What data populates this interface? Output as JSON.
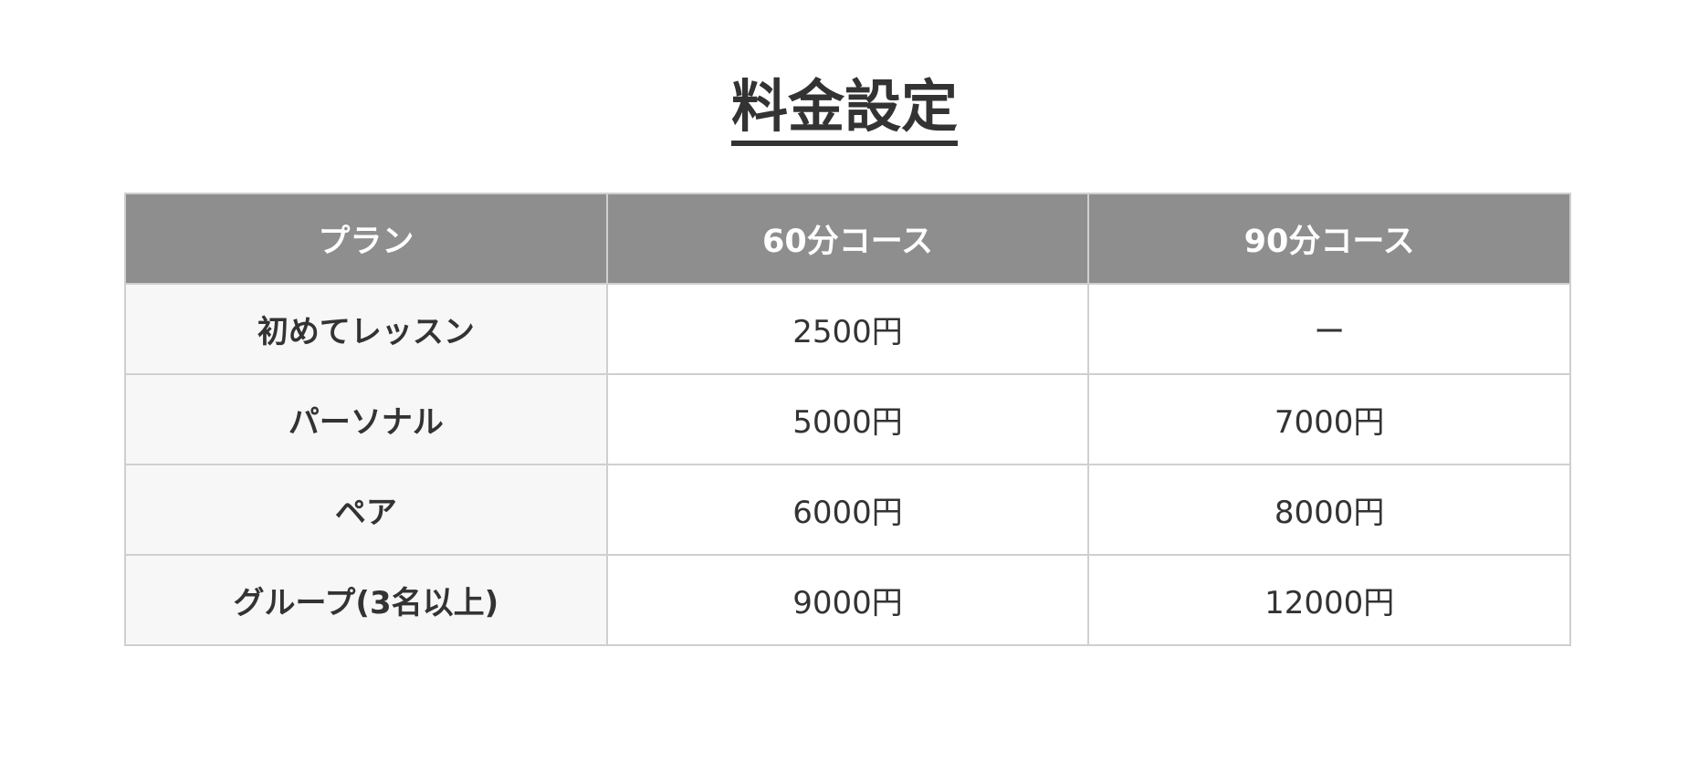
{
  "title": "料金設定",
  "table": {
    "headers": [
      "プラン",
      "60分コース",
      "90分コース"
    ],
    "rows": [
      [
        "初めてレッスン",
        "2500円",
        "ー"
      ],
      [
        "パーソナル",
        "5000円",
        "7000円"
      ],
      [
        "ペア",
        "6000円",
        "8000円"
      ],
      [
        "グループ(3名以上)",
        "9000円",
        "12000円"
      ]
    ]
  },
  "colors": {
    "header_bg": "#8e8e8e",
    "plan_col_bg": "#f7f7f7",
    "border": "#cfcfcf",
    "text": "#333333"
  }
}
